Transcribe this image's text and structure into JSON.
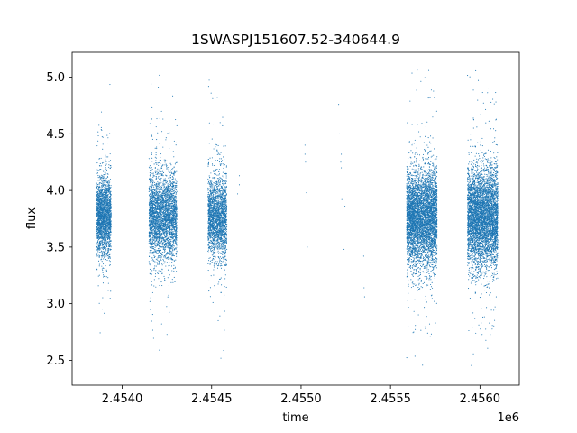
{
  "chart_data": {
    "type": "scatter",
    "title": "1SWASPJ151607.52-340644.9",
    "xlabel": "time",
    "ylabel": "flux",
    "x_offset_label": "1e6",
    "xlim": [
      2453720,
      2456220
    ],
    "ylim": [
      2.28,
      5.22
    ],
    "x_ticks": [
      2453999.9,
      2454500,
      2455000,
      2455500,
      2456000
    ],
    "x_tick_labels": [
      "2.4540",
      "2.4545",
      "2.4550",
      "2.4555",
      "2.4560"
    ],
    "y_ticks": [
      2.5,
      3.0,
      3.5,
      4.0,
      4.5,
      5.0
    ],
    "y_tick_labels": [
      "2.5",
      "3.0",
      "3.5",
      "4.0",
      "4.5",
      "5.0"
    ],
    "grid": false,
    "marker_color": "#1f77b4",
    "clusters": [
      {
        "x_start": 2453858,
        "x_end": 2453938,
        "center": 3.77,
        "spread": 0.17,
        "n": 2200
      },
      {
        "x_start": 2454150,
        "x_end": 2454306,
        "center": 3.77,
        "spread": 0.19,
        "n": 3200
      },
      {
        "x_start": 2454480,
        "x_end": 2454585,
        "center": 3.77,
        "spread": 0.18,
        "n": 2200
      },
      {
        "x_start": 2455590,
        "x_end": 2455760,
        "center": 3.76,
        "spread": 0.21,
        "n": 5000
      },
      {
        "x_start": 2455930,
        "x_end": 2456100,
        "center": 3.76,
        "spread": 0.22,
        "n": 5000
      }
    ],
    "sparse_points": [
      {
        "x": 2454655,
        "y": 4.13
      },
      {
        "x": 2454655,
        "y": 4.05
      },
      {
        "x": 2454645,
        "y": 3.97
      },
      {
        "x": 2455022,
        "y": 4.4
      },
      {
        "x": 2455022,
        "y": 4.32
      },
      {
        "x": 2455025,
        "y": 4.25
      },
      {
        "x": 2455030,
        "y": 3.98
      },
      {
        "x": 2455033,
        "y": 3.92
      },
      {
        "x": 2455035,
        "y": 3.5
      },
      {
        "x": 2455210,
        "y": 4.76
      },
      {
        "x": 2455215,
        "y": 4.5
      },
      {
        "x": 2455225,
        "y": 4.32
      },
      {
        "x": 2455222,
        "y": 4.25
      },
      {
        "x": 2455225,
        "y": 4.2
      },
      {
        "x": 2455228,
        "y": 3.92
      },
      {
        "x": 2455240,
        "y": 3.48
      },
      {
        "x": 2455245,
        "y": 3.86
      },
      {
        "x": 2455350,
        "y": 3.42
      },
      {
        "x": 2455352,
        "y": 3.14
      },
      {
        "x": 2455355,
        "y": 3.06
      }
    ]
  }
}
